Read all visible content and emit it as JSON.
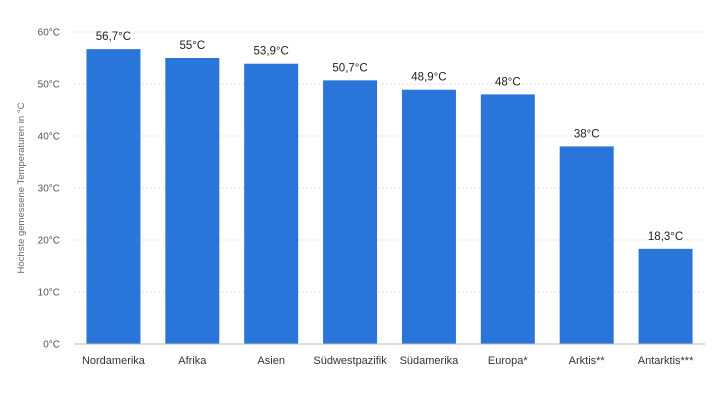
{
  "chart_data": {
    "type": "bar",
    "ylabel": "Höchste gemessene Temperaturen in °C",
    "ylim": [
      0,
      60
    ],
    "yticks": [
      0,
      10,
      20,
      30,
      40,
      50,
      60
    ],
    "ytick_labels": [
      "0°C",
      "10°C",
      "20°C",
      "30°C",
      "40°C",
      "50°C",
      "60°C"
    ],
    "grid": true,
    "bar_color": "#2a75d9",
    "categories": [
      "Nordamerika",
      "Afrika",
      "Asien",
      "Südwestpazifik",
      "Südamerika",
      "Europa*",
      "Arktis**",
      "Antarktis***"
    ],
    "values": [
      56.7,
      55,
      53.9,
      50.7,
      48.9,
      48,
      38,
      18.3
    ],
    "data_labels": [
      "56,7°C",
      "55°C",
      "53,9°C",
      "50,7°C",
      "48,9°C",
      "48°C",
      "38°C",
      "18,3°C"
    ]
  }
}
